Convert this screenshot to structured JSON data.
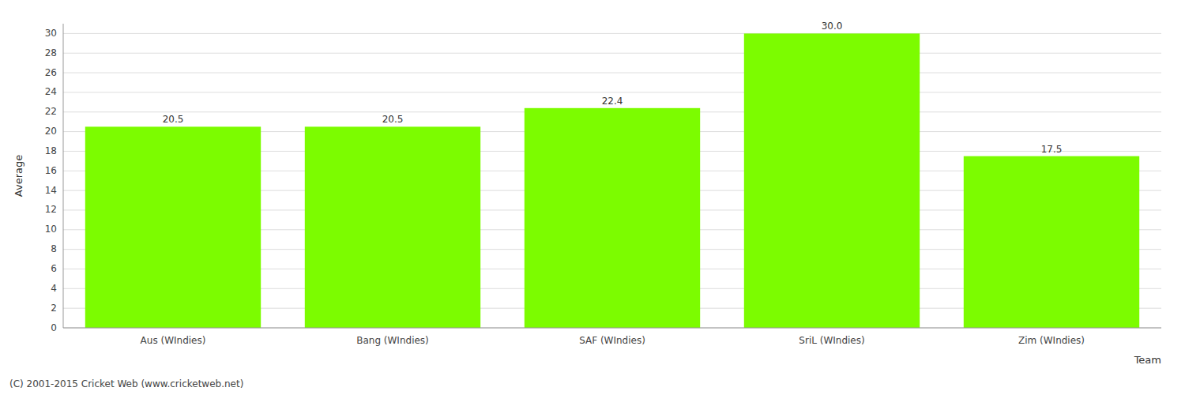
{
  "chart_data": {
    "type": "bar",
    "categories": [
      "Aus (WIndies)",
      "Bang (WIndies)",
      "SAF (WIndies)",
      "SriL (WIndies)",
      "Zim (WIndies)"
    ],
    "values": [
      20.5,
      20.5,
      22.4,
      30.0,
      17.5
    ],
    "value_labels": [
      "20.5",
      "20.5",
      "22.4",
      "30.0",
      "17.5"
    ],
    "data_labels": true,
    "color": "#7CFC00",
    "x_label": "Team",
    "y_label": "Average",
    "annotations": [
      "(C) 2001-2015 Cricket Web (www.cricketweb.net)"
    ],
    "ylim": [
      0,
      31
    ],
    "yticks": [
      0,
      2,
      4,
      6,
      8,
      10,
      12,
      14,
      16,
      18,
      20,
      22,
      24,
      26,
      28,
      30
    ],
    "grid": true
  }
}
